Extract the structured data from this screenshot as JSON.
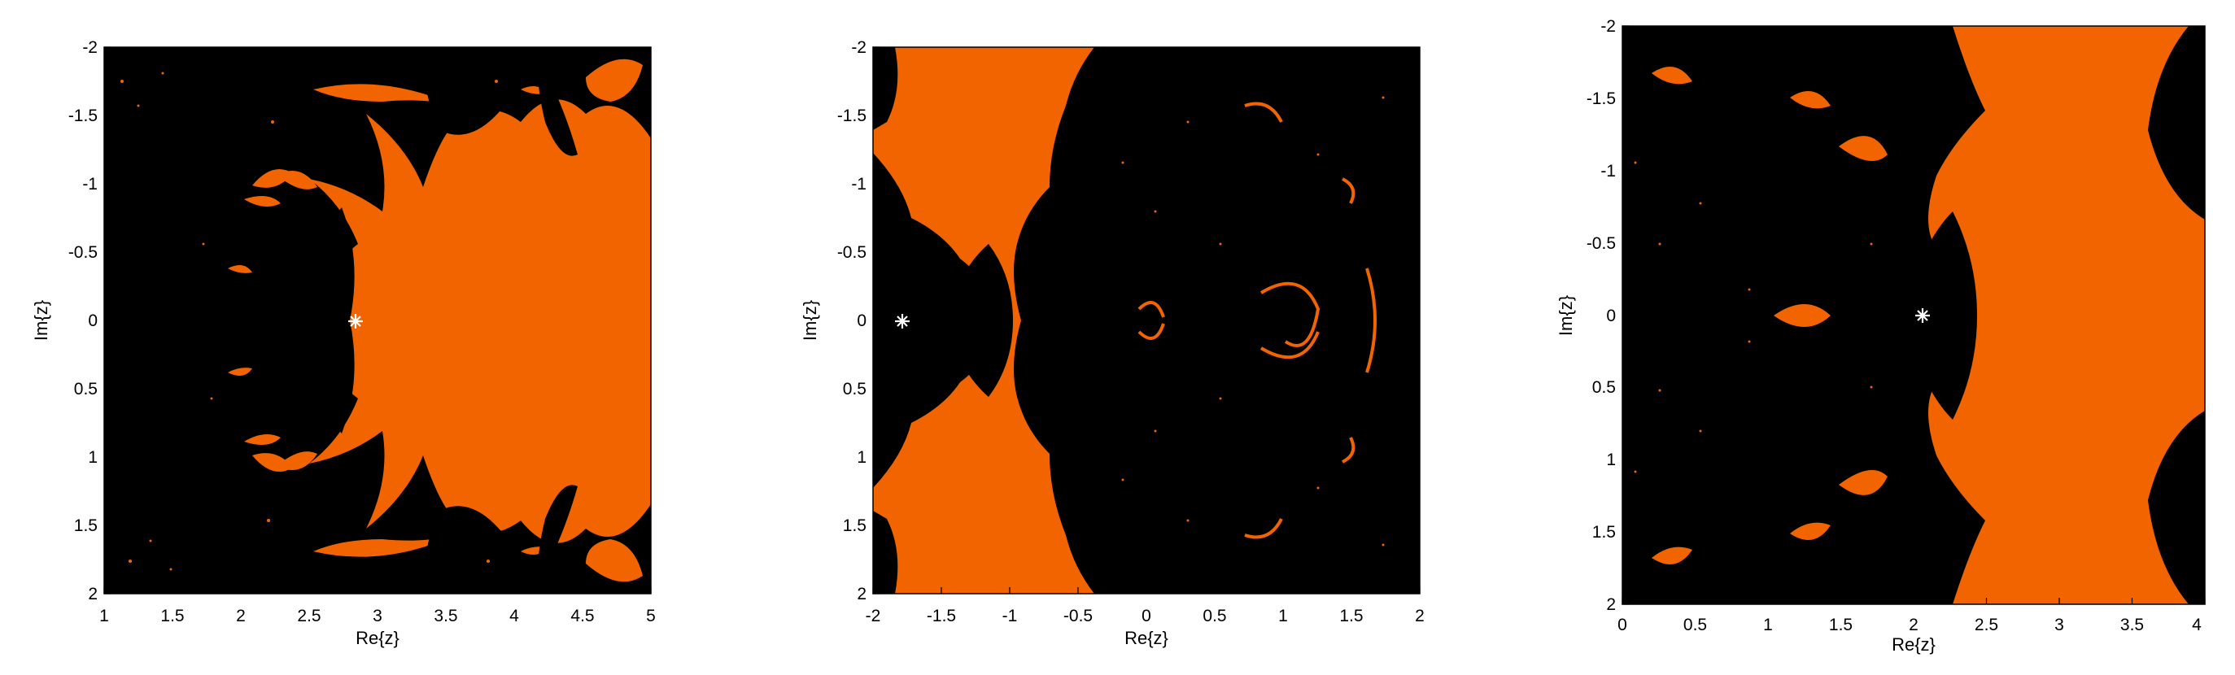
{
  "chart_data": [
    {
      "type": "heatmap",
      "xlabel": "Re{z}",
      "ylabel": "Im{z}",
      "xlim": [
        1,
        5
      ],
      "ylim": [
        -2,
        2
      ],
      "x_ticks": [
        1,
        1.5,
        2,
        2.5,
        3,
        3.5,
        4,
        4.5,
        5
      ],
      "x_tick_labels": [
        "1",
        "1.5",
        "2",
        "2.5",
        "3",
        "3.5",
        "4",
        "4.5",
        "5"
      ],
      "y_ticks": [
        -2,
        -1.5,
        -1,
        -0.5,
        0,
        0.5,
        1,
        1.5,
        2
      ],
      "y_tick_labels": [
        "-2",
        "-1.5",
        "-1",
        "-0.5",
        "0",
        "0.5",
        "1",
        "1.5",
        "2"
      ],
      "y_axis_reversed": true,
      "marked_point": {
        "re": 2.85,
        "im": 0
      },
      "colors": {
        "converged": "#f26400",
        "background": "#000000",
        "marker": "#ffffff"
      }
    },
    {
      "type": "heatmap",
      "xlabel": "Re{z}",
      "ylabel": "Im{z}",
      "xlim": [
        -2,
        2
      ],
      "ylim": [
        -2,
        2
      ],
      "x_ticks": [
        -2,
        -1.5,
        -1,
        -0.5,
        0,
        0.5,
        1,
        1.5,
        2
      ],
      "x_tick_labels": [
        "-2",
        "-1.5",
        "-1",
        "-0.5",
        "0",
        "0.5",
        "1",
        "1.5",
        "2"
      ],
      "y_ticks": [
        -2,
        -1.5,
        -1,
        -0.5,
        0,
        0.5,
        1,
        1.5,
        2
      ],
      "y_tick_labels": [
        "-2",
        "-1.5",
        "-1",
        "-0.5",
        "0",
        "0.5",
        "1",
        "1.5",
        "2"
      ],
      "y_axis_reversed": true,
      "marked_point": {
        "re": -1.78,
        "im": 0
      },
      "colors": {
        "converged": "#f26400",
        "background": "#000000",
        "marker": "#ffffff"
      }
    },
    {
      "type": "heatmap",
      "xlabel": "Re{z}",
      "ylabel": "Im{z}",
      "xlim": [
        0,
        4
      ],
      "ylim": [
        -2,
        2
      ],
      "x_ticks": [
        0,
        0.5,
        1,
        1.5,
        2,
        2.5,
        3,
        3.5,
        4
      ],
      "x_tick_labels": [
        "0",
        "0.5",
        "1",
        "1.5",
        "2",
        "2.5",
        "3",
        "3.5",
        "4"
      ],
      "y_ticks": [
        -2,
        -1.5,
        -1,
        -0.5,
        0,
        0.5,
        1,
        1.5,
        2
      ],
      "y_tick_labels": [
        "-2",
        "-1.5",
        "-1",
        "-0.5",
        "0",
        "0.5",
        "1",
        "1.5",
        "2"
      ],
      "y_axis_reversed": true,
      "marked_point": {
        "re": 2.03,
        "im": 0
      },
      "colors": {
        "converged": "#f26400",
        "background": "#000000",
        "marker": "#ffffff"
      }
    }
  ]
}
